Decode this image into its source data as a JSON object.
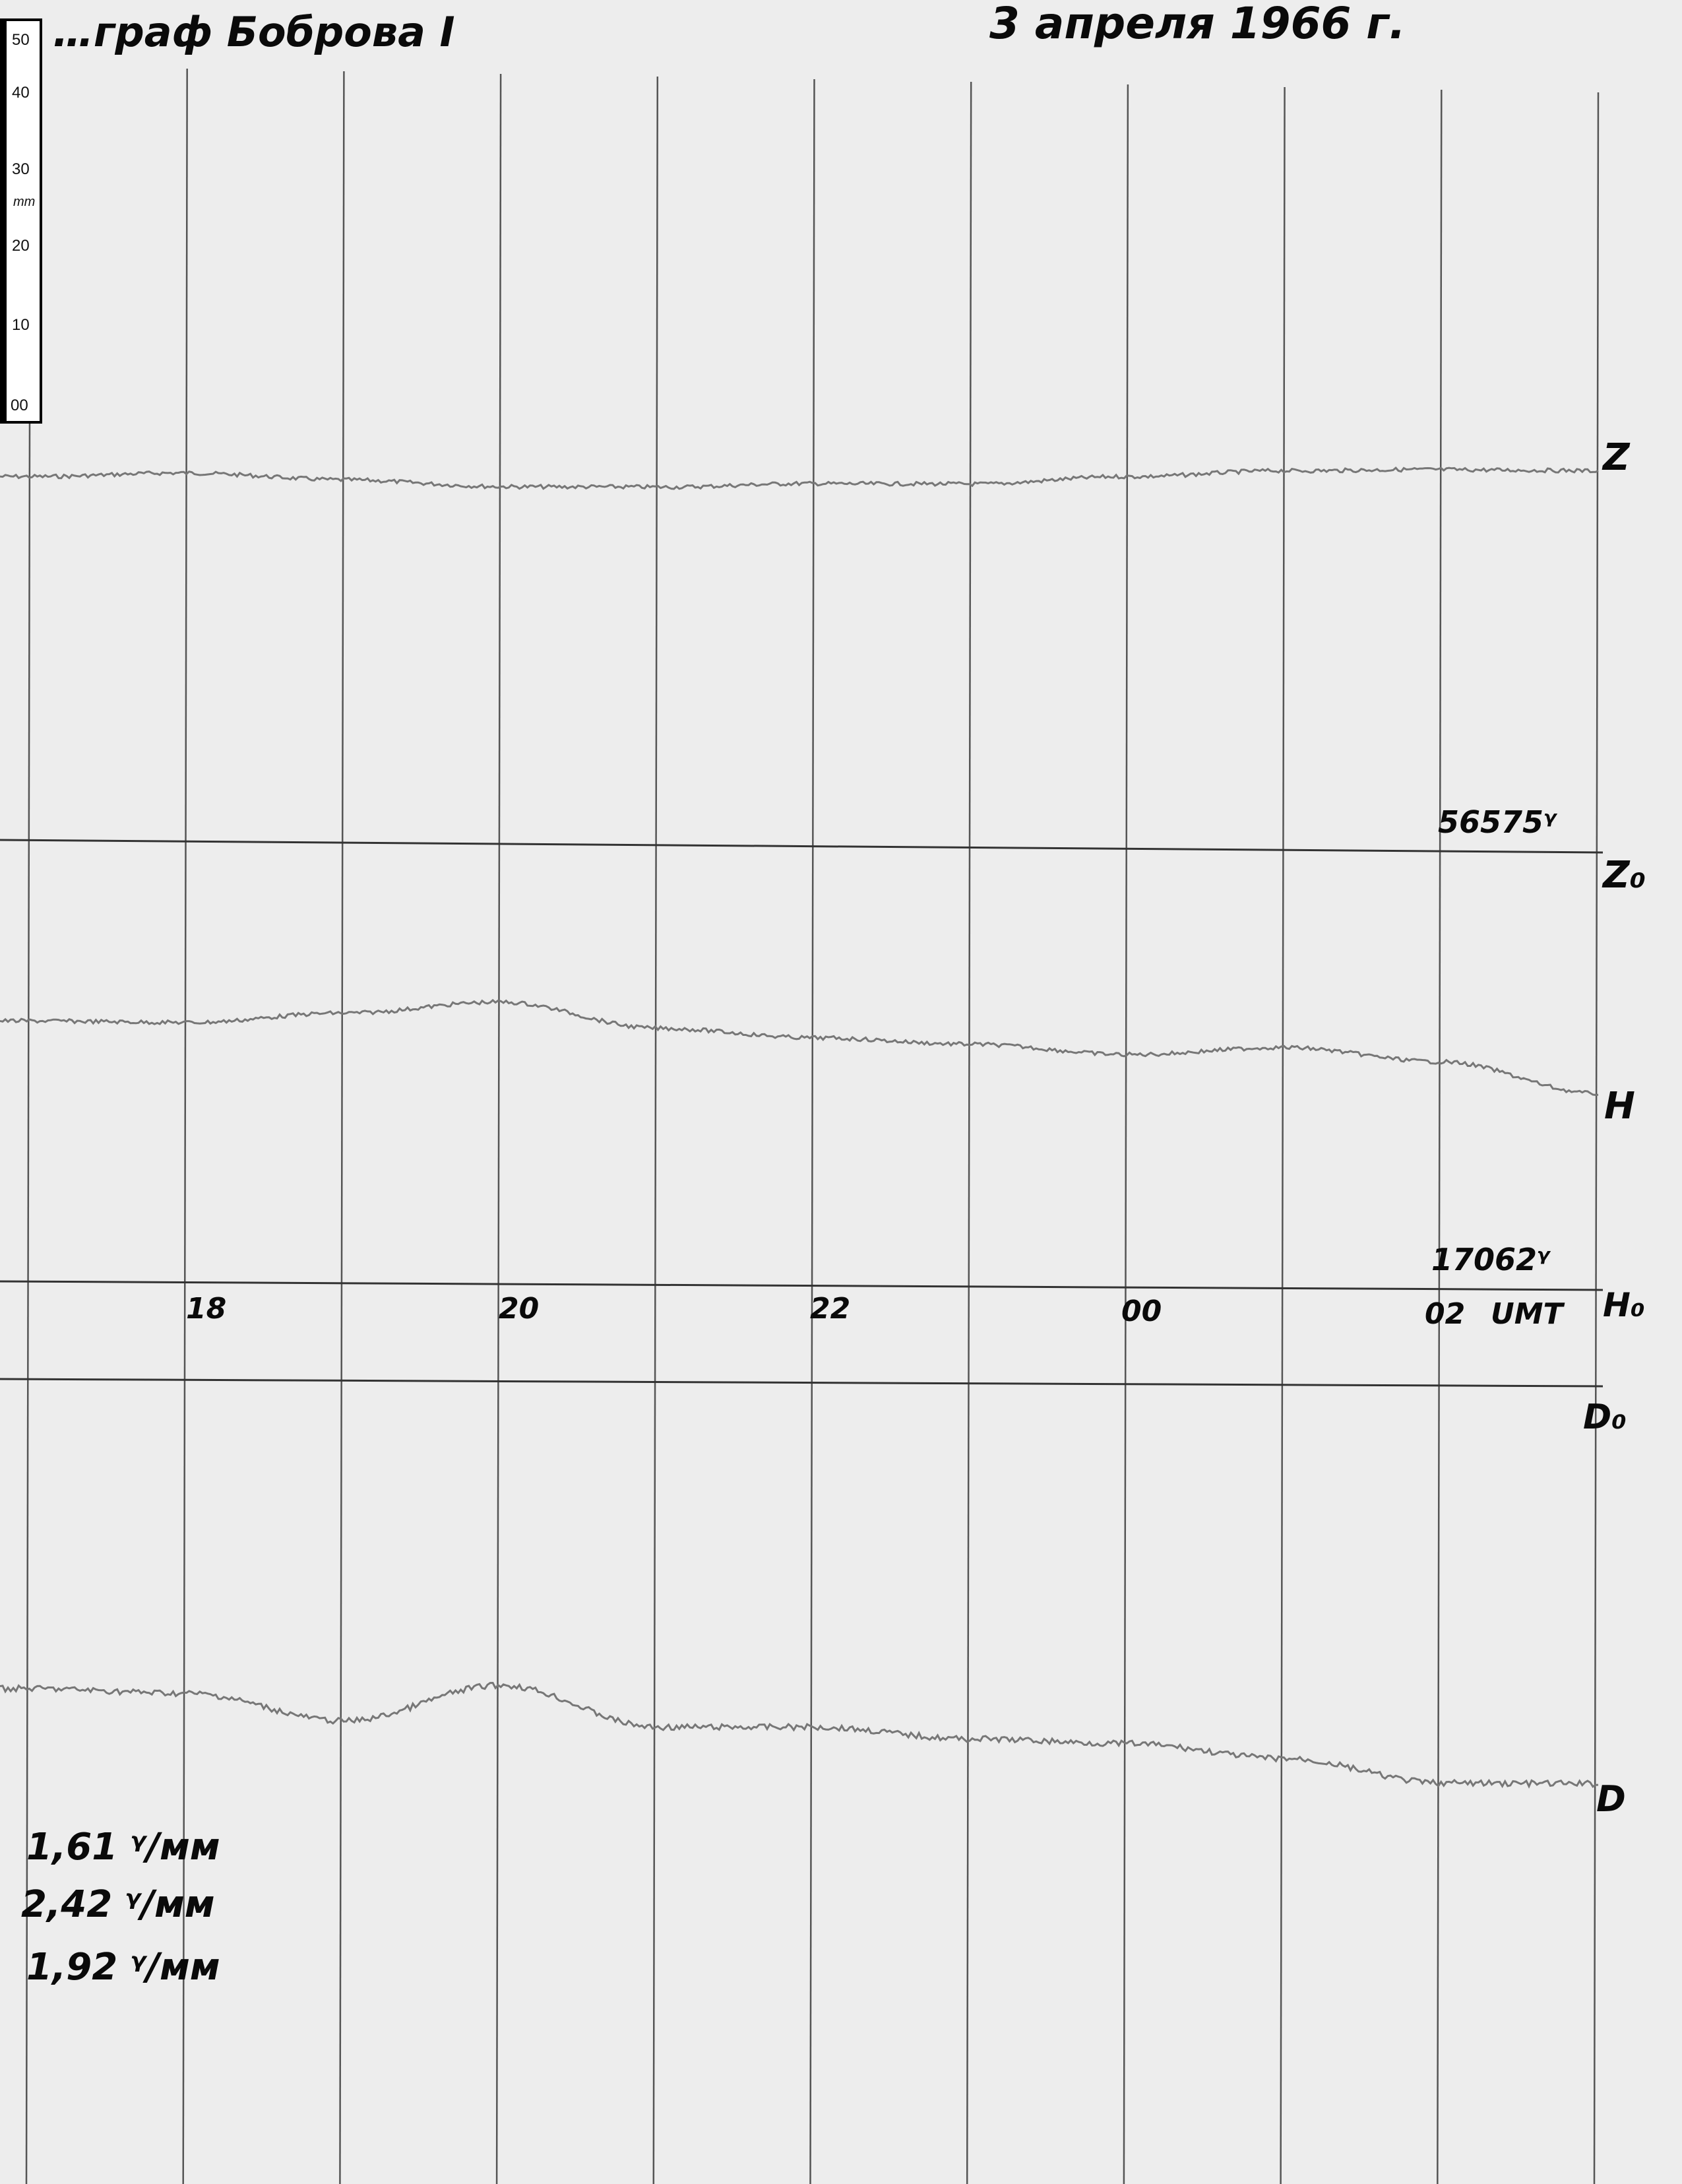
{
  "header": {
    "instrument": "…граф Боброва I",
    "date": "3 апреля 1966 г."
  },
  "ruler": {
    "unit": "mm",
    "ticks": [
      "50",
      "40",
      "30",
      "20",
      "10",
      "00"
    ]
  },
  "labels": {
    "z": "Z",
    "z0": "Z₀",
    "z0_value": "56575ᵞ",
    "h": "H",
    "h0": "H₀",
    "h0_value": "17062ᵞ",
    "d0": "D₀",
    "d": "D",
    "time_unit": "UMT"
  },
  "scale_values": [
    "1,61 ᵞ/мм",
    "2,42 ᵞ/мм",
    "1,92 ᵞ/мм"
  ],
  "colors": {
    "paper": "#ededed",
    "grid": "#555555",
    "trace": "#777777",
    "ink": "#0a0a0a"
  },
  "chart_data": {
    "type": "line",
    "title": "",
    "xlabel": "UMT",
    "ylabel": "",
    "x": [
      "17",
      "18",
      "19",
      "20",
      "21",
      "22",
      "23",
      "00",
      "01",
      "02",
      "03"
    ],
    "x_tick_labels": [
      "18",
      "20",
      "22",
      "00",
      "02"
    ],
    "grid": true,
    "series": [
      {
        "name": "Z",
        "baseline": "Z₀",
        "values": [
          45.9,
          46.5,
          45.8,
          45.1,
          45.2,
          45.8,
          45.9,
          47.0,
          47.9,
          48.2,
          48.2
        ]
      },
      {
        "name": "H",
        "baseline": "H₀",
        "values": [
          32.9,
          32.8,
          34.1,
          35.6,
          32.4,
          31.3,
          30.6,
          29.4,
          30.4,
          28.7,
          24.8
        ]
      },
      {
        "name": "D",
        "baseline": "D₀",
        "values": [
          -39.1,
          -39.6,
          -43.0,
          -38.4,
          -43.6,
          -43.5,
          -44.9,
          -45.4,
          -47.2,
          -50.2,
          -50.2
        ]
      }
    ]
  }
}
